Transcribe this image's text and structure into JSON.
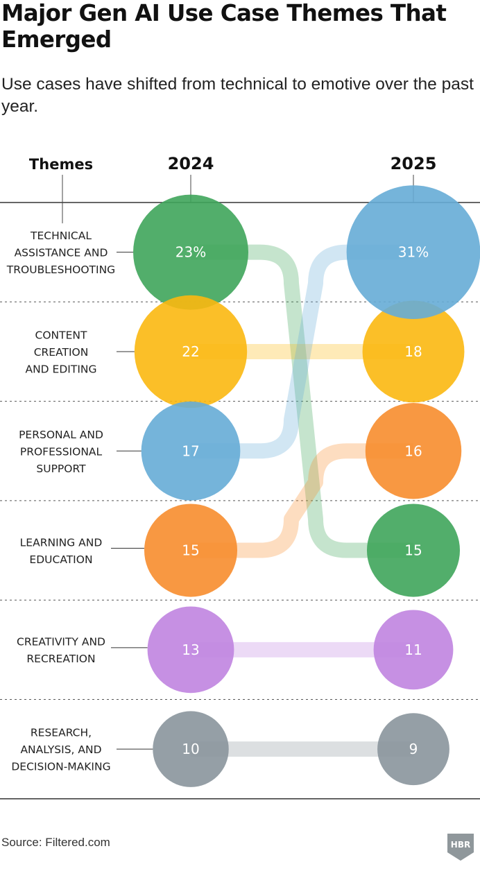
{
  "title": "Major Gen AI Use Case Themes That Emerged",
  "subtitle": "Use cases have shifted from technical to emotive over the past year.",
  "source": "Source: Filtered.com",
  "logo_text": "HBR",
  "chart_data": {
    "type": "slope-bubble",
    "column_headers": [
      "Themes",
      "2024",
      "2025"
    ],
    "years": [
      "2024",
      "2025"
    ],
    "percent_suffix_on_first": true,
    "themes": [
      {
        "label_lines": [
          "TECHNICAL",
          "ASSISTANCE AND",
          "TROUBLESHOOTING"
        ],
        "color": "#3fa55b",
        "v2024": 23,
        "v2025": 15,
        "rank2024": 1,
        "rank2025": 4
      },
      {
        "label_lines": [
          "CONTENT",
          "CREATION",
          "AND EDITING"
        ],
        "color": "#fbb811",
        "v2024": 22,
        "v2025": 18,
        "rank2024": 2,
        "rank2025": 2
      },
      {
        "label_lines": [
          "PERSONAL AND",
          "PROFESSIONAL",
          "SUPPORT"
        ],
        "color": "#66acd6",
        "v2024": 17,
        "v2025": 31,
        "rank2024": 3,
        "rank2025": 1
      },
      {
        "label_lines": [
          "LEARNING AND",
          "EDUCATION"
        ],
        "color": "#f78d2e",
        "v2024": 15,
        "v2025": 16,
        "rank2024": 4,
        "rank2025": 3
      },
      {
        "label_lines": [
          "CREATIVITY AND",
          "RECREATION"
        ],
        "color": "#c084e0",
        "v2024": 13,
        "v2025": 11,
        "rank2024": 5,
        "rank2025": 5
      },
      {
        "label_lines": [
          "RESEARCH,",
          "ANALYSIS, AND",
          "DECISION-MAKING"
        ],
        "color": "#8a959c",
        "v2024": 10,
        "v2025": 9,
        "rank2024": 6,
        "rank2025": 6
      }
    ]
  }
}
